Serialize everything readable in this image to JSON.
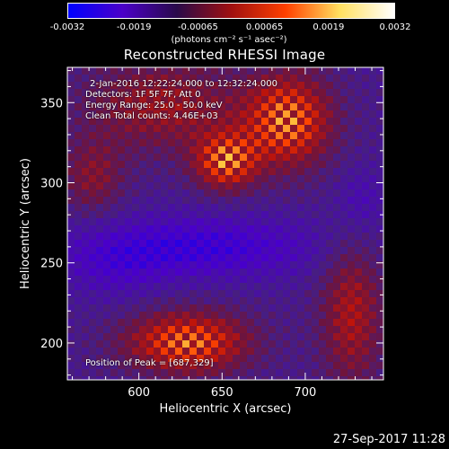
{
  "colorbar": {
    "ticks": [
      "-0.0032",
      "-0.0019",
      "-0.00065",
      "0.00065",
      "0.0019",
      "0.0032"
    ],
    "tick_values": [
      -0.0032,
      -0.0019,
      -0.00065,
      0.00065,
      0.0019,
      0.0032
    ],
    "unit_label": "(photons cm⁻² s⁻¹ asec⁻²)",
    "colors": [
      "#0000ff",
      "#4b00c8",
      "#2a0a4a",
      "#a01010",
      "#ff4000",
      "#ffe060",
      "#ffffff"
    ]
  },
  "annotations": {
    "time_range": "2-Jan-2016 12:22:24.000 to 12:32:24.000",
    "detectors": "Detectors: 1F 5F 7F, Att 0",
    "energy_range": "Energy Range: 25.0 - 50.0 keV",
    "method_counts": "Clean     Total counts: 4.46E+03",
    "peak": "Position of Peak = [687,329]"
  },
  "timestamp": "27-Sep-2017 11:28",
  "chart_data": {
    "type": "heatmap",
    "title": "Reconstructed RHESSI Image",
    "xlabel": "Heliocentric X (arcsec)",
    "ylabel": "Heliocentric Y (arcsec)",
    "xlim": [
      557,
      747
    ],
    "ylim": [
      177,
      372
    ],
    "x_ticks": [
      600,
      650,
      700
    ],
    "y_ticks": [
      200,
      250,
      300,
      350
    ],
    "color_range": [
      -0.0032,
      0.0032
    ],
    "peak_position": [
      687,
      329
    ],
    "peak_value": 0.0032
  }
}
